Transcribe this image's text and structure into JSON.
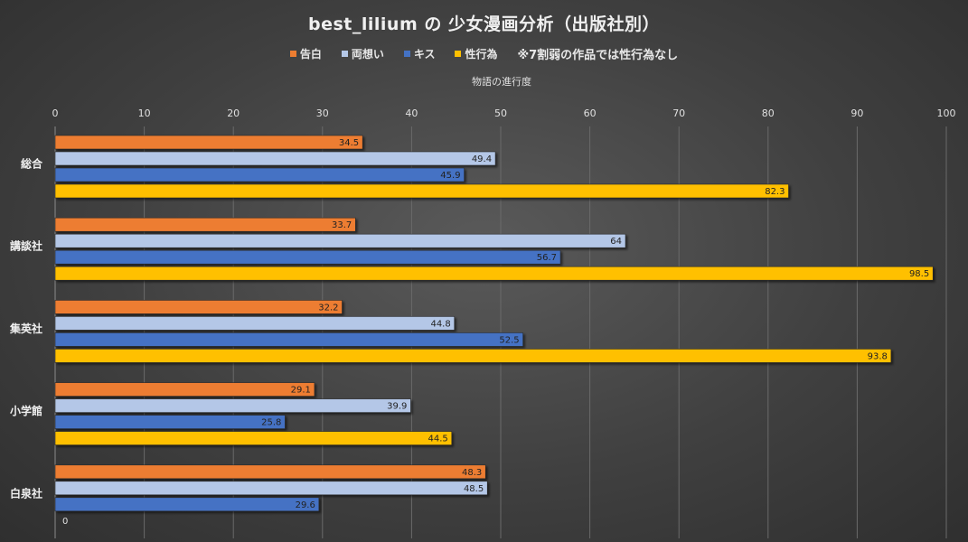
{
  "chart_data": {
    "type": "bar",
    "orientation": "horizontal",
    "title": "best_lilium の 少女漫画分析（出版社別）",
    "xlabel": "物語の進行度",
    "xlim": [
      0,
      100
    ],
    "xticks": [
      "0",
      "10",
      "20",
      "30",
      "40",
      "50",
      "60",
      "70",
      "80",
      "90",
      "100"
    ],
    "legend_position": "top",
    "legend_note": "※7割弱の作品では性行為なし",
    "categories": [
      "総合",
      "講談社",
      "集英社",
      "小学館",
      "白泉社"
    ],
    "series": [
      {
        "name": "告白",
        "color": "#ed7d31",
        "values": [
          34.5,
          33.7,
          32.2,
          29.1,
          48.3
        ]
      },
      {
        "name": "両想い",
        "color": "#b4c7e7",
        "values": [
          49.4,
          64,
          44.8,
          39.9,
          48.5
        ]
      },
      {
        "name": "キス",
        "color": "#4472c4",
        "values": [
          45.9,
          56.7,
          52.5,
          25.8,
          29.6
        ]
      },
      {
        "name": "性行為",
        "color": "#ffc000",
        "values": [
          82.3,
          98.5,
          93.8,
          44.5,
          0
        ]
      }
    ],
    "grid": true
  }
}
